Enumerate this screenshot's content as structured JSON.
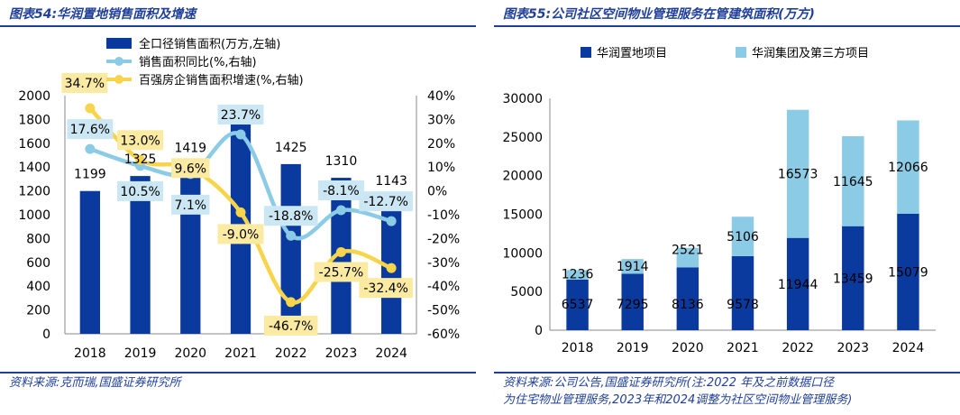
{
  "left": {
    "title": "图表54:华润置地销售面积及增速",
    "source": "资料来源:克而瑞,国盛证券研究所",
    "chart_data": {
      "type": "bar",
      "categories": [
        "2018",
        "2019",
        "2020",
        "2021",
        "2022",
        "2023",
        "2024"
      ],
      "ylim_left": [
        0,
        2000
      ],
      "yticks_left": [
        "0",
        "200",
        "400",
        "600",
        "800",
        "1000",
        "1200",
        "1400",
        "1600",
        "1800",
        "2000"
      ],
      "ylim_right": [
        -60,
        40
      ],
      "yticks_right": [
        "-60%",
        "-50%",
        "-40%",
        "-30%",
        "-20%",
        "-10%",
        "0%",
        "10%",
        "20%",
        "30%",
        "40%"
      ],
      "legend_position": "top",
      "series": [
        {
          "name": "全口径销售面积(万方,左轴)",
          "type": "bar",
          "axis": "left",
          "color": "#0a3a9e",
          "values": [
            1199,
            1325,
            1419,
            1760,
            1425,
            1310,
            1143
          ],
          "labels": [
            "1199",
            "1325",
            "1419",
            "",
            "1425",
            "1310",
            "1143"
          ]
        },
        {
          "name": "销售面积同比(%,右轴)",
          "type": "line",
          "axis": "right",
          "color": "#8ccbe6",
          "values": [
            17.6,
            10.5,
            7.1,
            23.7,
            -18.8,
            -8.1,
            -12.7
          ],
          "labels": [
            "17.6%",
            "10.5%",
            "7.1%",
            "23.7%",
            "-18.8%",
            "-8.1%",
            "-12.7%"
          ]
        },
        {
          "name": "百强房企销售面积增速(%,右轴)",
          "type": "line",
          "axis": "right",
          "color": "#f7d44a",
          "values": [
            34.7,
            13.0,
            9.6,
            -9.0,
            -46.7,
            -25.7,
            -32.4
          ],
          "labels": [
            "34.7%",
            "13.0%",
            "9.6%",
            "-9.0%",
            "-46.7%",
            "-25.7%",
            "-32.4%"
          ]
        }
      ]
    }
  },
  "right": {
    "title": "图表55:公司社区空间物业管理服务在管建筑面积(万方)",
    "source_line1": "资料来源:公司公告,国盛证券研究所(注:2022 年及之前数据口径",
    "source_line2": "为住宅物业管理服务,2023年和2024调整为社区空间物业管理服务)",
    "chart_data": {
      "type": "bar",
      "stacked": true,
      "categories": [
        "2018",
        "2019",
        "2020",
        "2021",
        "2022",
        "2023",
        "2024"
      ],
      "ylim": [
        0,
        30000
      ],
      "yticks": [
        "0",
        "5000",
        "10000",
        "15000",
        "20000",
        "25000",
        "30000"
      ],
      "legend_position": "top",
      "series": [
        {
          "name": "华润置地项目",
          "color": "#0a3a9e",
          "values": [
            6537,
            7295,
            8136,
            9578,
            11944,
            13459,
            15079
          ]
        },
        {
          "name": "华润集团及第三方项目",
          "color": "#8ccbe6",
          "values": [
            1236,
            1914,
            2521,
            5106,
            16573,
            11645,
            12066
          ]
        }
      ]
    }
  }
}
